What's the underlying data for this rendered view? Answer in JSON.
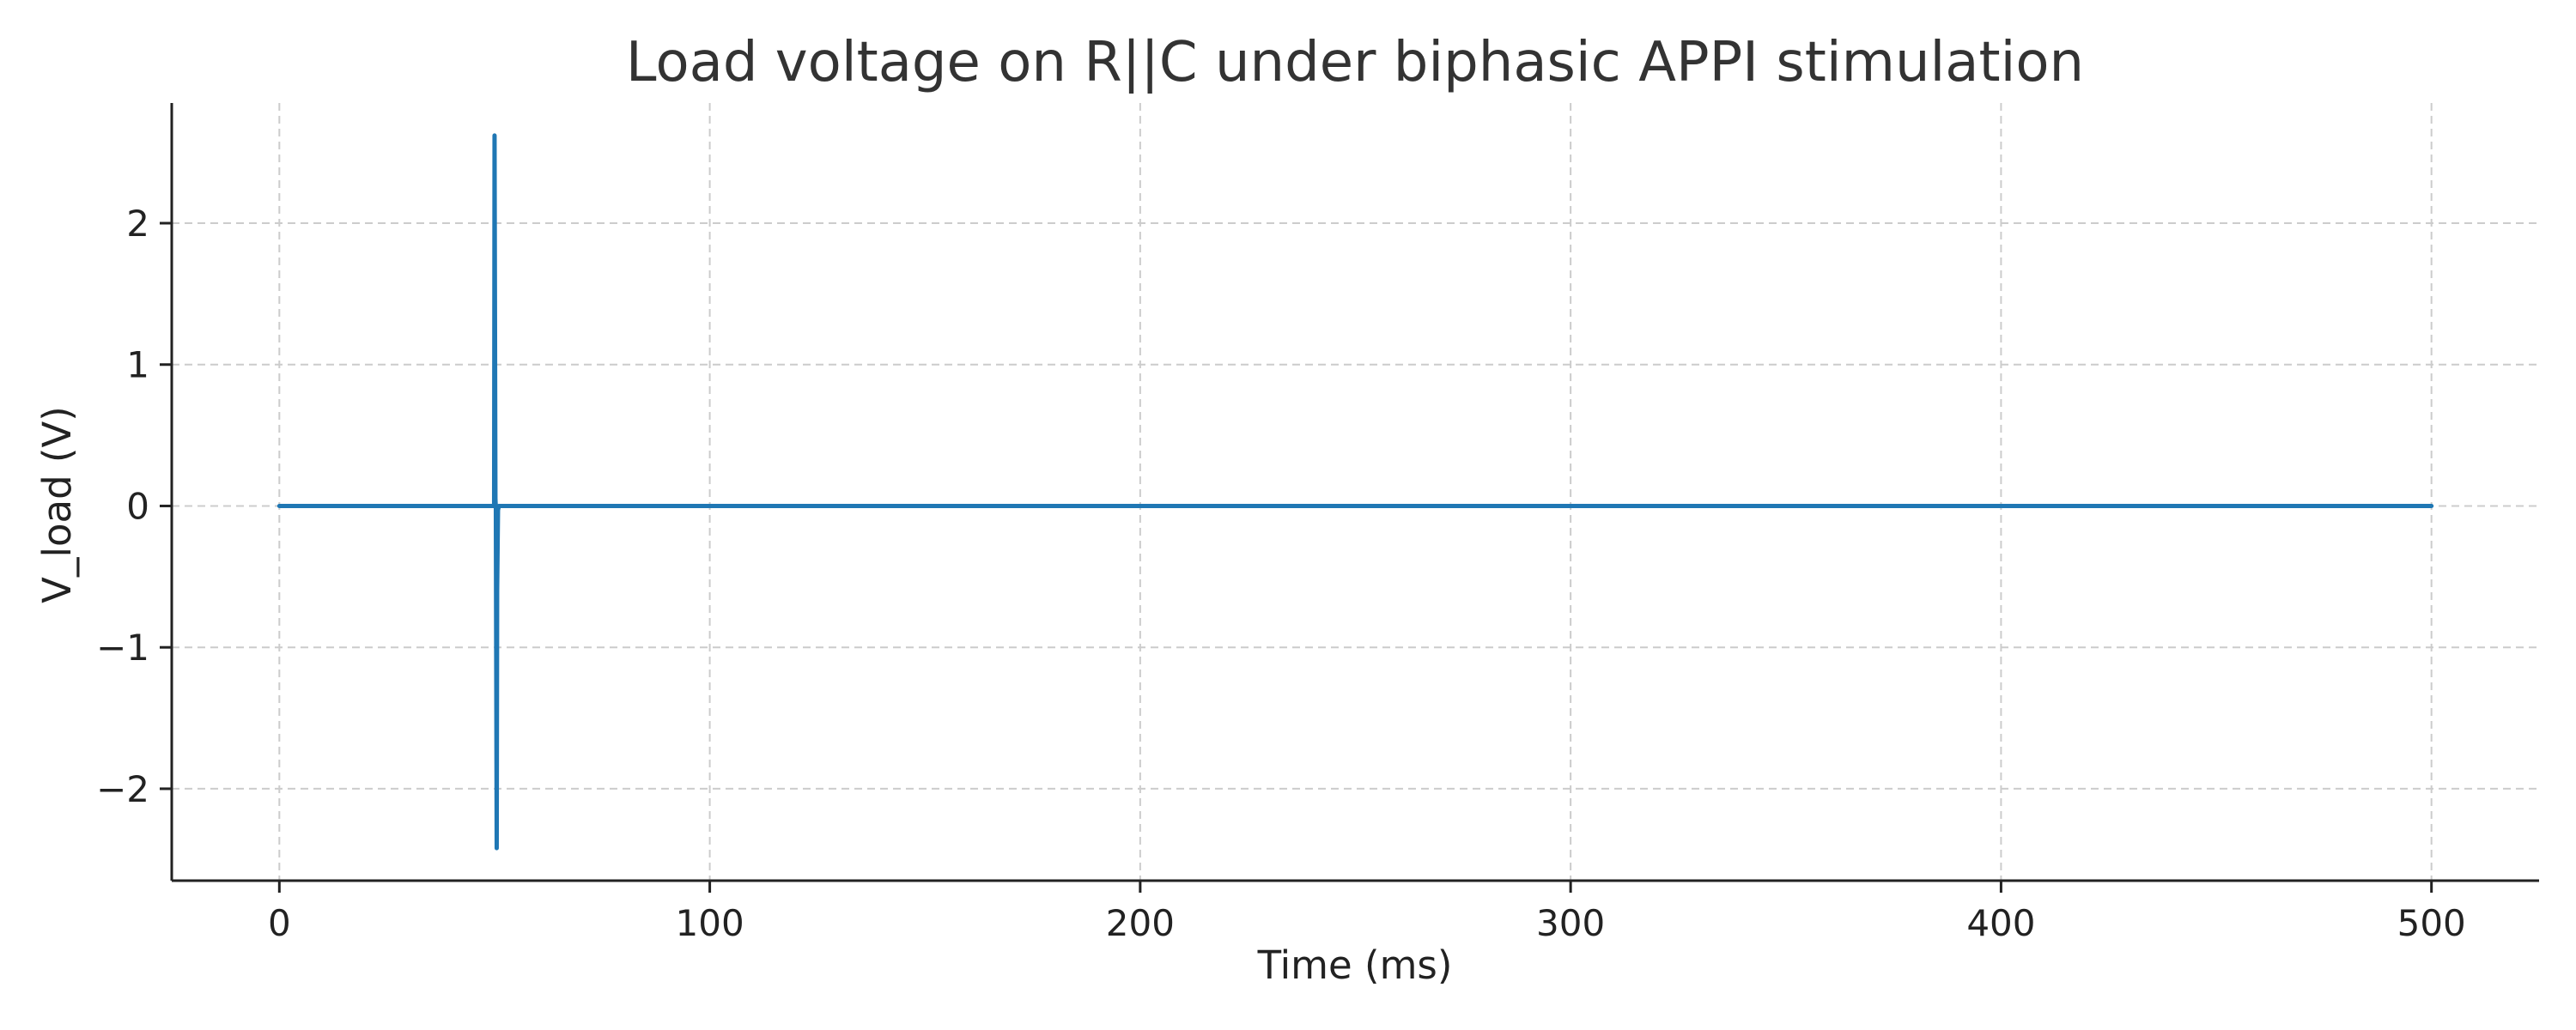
{
  "chart_data": {
    "type": "line",
    "title": "Load voltage on R||C under biphasic APPI stimulation",
    "xlabel": "Time (ms)",
    "ylabel": "V_load (V)",
    "xlim": [
      -25,
      525
    ],
    "ylim": [
      -2.65,
      2.85
    ],
    "xticks": [
      0,
      100,
      200,
      300,
      400,
      500
    ],
    "xtick_labels": [
      "0",
      "100",
      "200",
      "300",
      "400",
      "500"
    ],
    "yticks": [
      -2,
      -1,
      0,
      1,
      2
    ],
    "ytick_labels": [
      "−2",
      "−1",
      "0",
      "1",
      "2"
    ],
    "grid": true,
    "legend": "none",
    "series": [
      {
        "color": "#1f77b4",
        "x": [
          0,
          49.9,
          50.0,
          50.2,
          50.3,
          50.5,
          50.6,
          50.8,
          51.0,
          51.5,
          500
        ],
        "y": [
          0,
          0,
          2.62,
          0.05,
          -0.02,
          -2.42,
          -0.6,
          -0.03,
          0,
          0,
          0
        ]
      }
    ]
  }
}
